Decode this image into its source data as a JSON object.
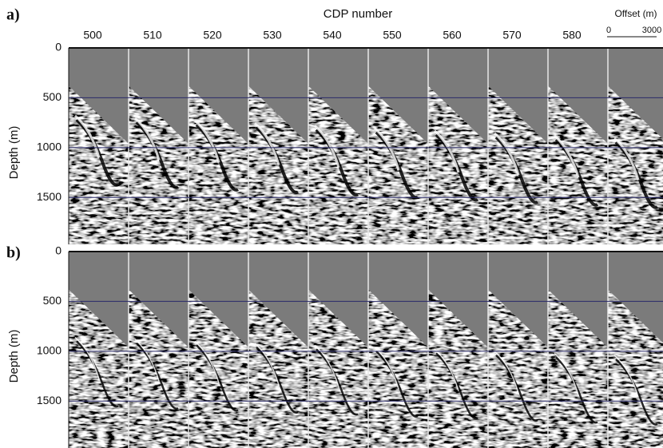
{
  "figure": {
    "x_label": "CDP number",
    "y_label": "Depth (m)",
    "cdp_numbers": [
      500,
      510,
      520,
      530,
      540,
      550,
      560,
      570,
      580
    ],
    "offset_scale": {
      "title": "Offset (m)",
      "ticks": [
        0,
        3000
      ]
    },
    "panels": [
      {
        "label": "a)",
        "ylim": [
          0,
          1970
        ],
        "yticks": [
          0,
          500,
          1000,
          1500
        ]
      },
      {
        "label": "b)",
        "ylim": [
          0,
          1970
        ],
        "yticks": [
          0,
          500,
          1000,
          1500
        ]
      }
    ]
  }
}
